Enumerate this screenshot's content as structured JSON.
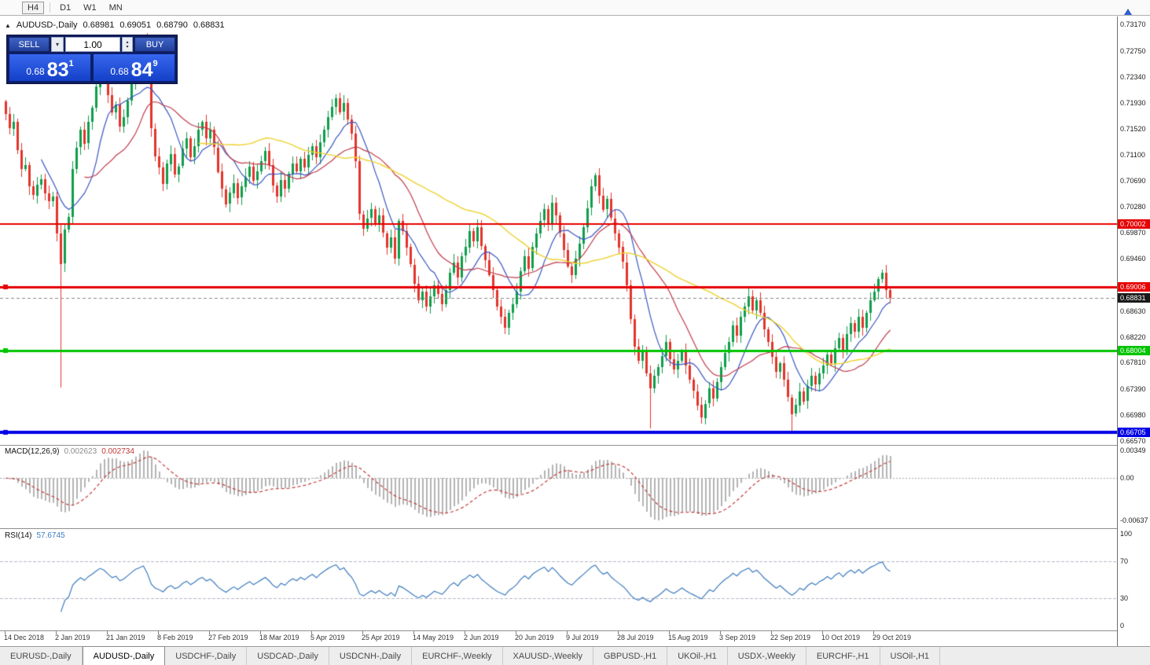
{
  "toolbar": {
    "timeframes": [
      {
        "label": "H4",
        "boxed": true
      },
      {
        "label": "D1",
        "boxed": false
      },
      {
        "label": "W1",
        "boxed": false
      },
      {
        "label": "MN",
        "boxed": false
      }
    ]
  },
  "chart_header": {
    "symbol": "AUDUSD-,Daily",
    "open": "0.68981",
    "high": "0.69051",
    "low": "0.68790",
    "close": "0.68831"
  },
  "trade_panel": {
    "sell_label": "SELL",
    "buy_label": "BUY",
    "volume": "1.00",
    "sell_price": {
      "small": "0.68",
      "big": "83",
      "sup": "1"
    },
    "buy_price": {
      "small": "0.68",
      "big": "84",
      "sup": "9"
    }
  },
  "price_axis_ticks": [
    "0.73170",
    "0.72750",
    "0.72340",
    "0.71930",
    "0.71520",
    "0.71100",
    "0.70690",
    "0.70280",
    "0.69870",
    "0.69460",
    "0.69040",
    "0.68630",
    "0.68220",
    "0.67810",
    "0.67390",
    "0.66980",
    "0.66570"
  ],
  "price_tags": [
    {
      "text": "0.70002",
      "color": "#E60000"
    },
    {
      "text": "0.69006",
      "color": "#E60000"
    },
    {
      "text": "0.68831",
      "color": "#1A1A1A"
    },
    {
      "text": "0.68004",
      "color": "#00C400"
    },
    {
      "text": "0.66705",
      "color": "#0000E6"
    }
  ],
  "macd_panel": {
    "title": "MACD(12,26,9)",
    "value_main": "0.002623",
    "value_signal": "0.002734",
    "axis_top": "0.00349",
    "axis_zero": "0.00",
    "axis_bottom": "-0.00637",
    "fast": 12,
    "slow": 26,
    "signal": 9,
    "histogram_color": "#B4B4B4",
    "signal_color": "#C23B3B"
  },
  "rsi_panel": {
    "title": "RSI(14)",
    "value": "57.6745",
    "period": 14,
    "axis": [
      "100",
      "70",
      "30",
      "0"
    ],
    "levels": [
      70,
      30
    ],
    "line_color": "#3C7BBF"
  },
  "time_axis": {
    "step": 13,
    "labels": [
      "14 Dec 2018",
      "2 Jan 2019",
      "21 Jan 2019",
      "8 Feb 2019",
      "27 Feb 2019",
      "18 Mar 2019",
      "5 Apr 2019",
      "25 Apr 2019",
      "14 May 2019",
      "2 Jun 2019",
      "20 Jun 2019",
      "9 Jul 2019",
      "28 Jul 2019",
      "15 Aug 2019",
      "3 Sep 2019",
      "22 Sep 2019",
      "10 Oct 2019",
      "29 Oct 2019"
    ]
  },
  "tabs": [
    {
      "label": "EURUSD-,Daily",
      "active": false
    },
    {
      "label": "AUDUSD-,Daily",
      "active": true
    },
    {
      "label": "USDCHF-,Daily",
      "active": false
    },
    {
      "label": "USDCAD-,Daily",
      "active": false
    },
    {
      "label": "USDCNH-,Daily",
      "active": false
    },
    {
      "label": "EURCHF-,Weekly",
      "active": false
    },
    {
      "label": "XAUUSD-,Weekly",
      "active": false
    },
    {
      "label": "GBPUSD-,H1",
      "active": false
    },
    {
      "label": "UKOil-,H1",
      "active": false
    },
    {
      "label": "USDX-,Weekly",
      "active": false
    },
    {
      "label": "EURCHF-,H1",
      "active": false
    },
    {
      "label": "USOil-,H1",
      "active": false
    }
  ],
  "chart_data": {
    "type": "candlestick",
    "symbol": "AUDUSD-",
    "timeframe": "Daily",
    "y_axis_range": {
      "top": 0.73282,
      "bottom": 0.66508
    },
    "current_price": 0.68831,
    "h_lines": [
      {
        "price": 0.70002,
        "color": "#E60000",
        "width": 2,
        "handle": false
      },
      {
        "price": 0.69006,
        "color": "#E60000",
        "width": 3,
        "handle": true
      },
      {
        "price": 0.68004,
        "color": "#00C400",
        "width": 3,
        "handle": true
      },
      {
        "price": 0.66705,
        "color": "#0000E6",
        "width": 4,
        "handle": true
      }
    ],
    "moving_averages": [
      {
        "period": 10,
        "color": "#3A57C4",
        "width": 1.2
      },
      {
        "period": 21,
        "color": "#C13B4A",
        "width": 1.2
      },
      {
        "period": 50,
        "color": "#EED22F",
        "width": 1.4
      }
    ],
    "colors": {
      "bull": "#0E9E4A",
      "bear": "#E3342B"
    },
    "first_open": 0.7195,
    "wick_overrides": {
      "14": {
        "low": 0.6741
      },
      "35": {
        "high": 0.7295
      },
      "84": {
        "high": 0.7206
      },
      "150": {
        "high": 0.7082
      },
      "164": {
        "low": 0.6677
      },
      "200": {
        "low": 0.66705
      },
      "223": {
        "high": 0.6929
      }
    },
    "closes": [
      0.7175,
      0.7152,
      0.7163,
      0.7118,
      0.7088,
      0.7094,
      0.706,
      0.7046,
      0.7063,
      0.7072,
      0.7049,
      0.7036,
      0.7044,
      0.6986,
      0.6938,
      0.6992,
      0.7012,
      0.7088,
      0.7122,
      0.715,
      0.7128,
      0.7162,
      0.7185,
      0.7218,
      0.7245,
      0.7232,
      0.7205,
      0.7178,
      0.719,
      0.7155,
      0.717,
      0.7196,
      0.7226,
      0.7255,
      0.7272,
      0.729,
      0.7242,
      0.7152,
      0.7108,
      0.709,
      0.7064,
      0.7096,
      0.7112,
      0.708,
      0.7092,
      0.712,
      0.7136,
      0.7106,
      0.7124,
      0.715,
      0.7162,
      0.7136,
      0.715,
      0.7122,
      0.7084,
      0.7056,
      0.7032,
      0.705,
      0.7066,
      0.7042,
      0.706,
      0.7076,
      0.7092,
      0.707,
      0.7084,
      0.71,
      0.7116,
      0.7094,
      0.7062,
      0.7044,
      0.707,
      0.7056,
      0.708,
      0.7096,
      0.7084,
      0.7104,
      0.709,
      0.711,
      0.7124,
      0.7106,
      0.713,
      0.715,
      0.717,
      0.7186,
      0.72,
      0.7178,
      0.7192,
      0.7166,
      0.7144,
      0.71,
      0.7016,
      0.6994,
      0.701,
      0.7024,
      0.7,
      0.7014,
      0.6986,
      0.6964,
      0.698,
      0.6946,
      0.7006,
      0.699,
      0.6964,
      0.6936,
      0.6906,
      0.688,
      0.6894,
      0.687,
      0.6886,
      0.6904,
      0.689,
      0.6874,
      0.6896,
      0.6924,
      0.694,
      0.6916,
      0.695,
      0.6964,
      0.699,
      0.6974,
      0.6996,
      0.6966,
      0.6944,
      0.692,
      0.6896,
      0.687,
      0.6854,
      0.6836,
      0.686,
      0.6874,
      0.6894,
      0.6926,
      0.695,
      0.693,
      0.6964,
      0.6986,
      0.7006,
      0.7024,
      0.7,
      0.7034,
      0.7014,
      0.6986,
      0.696,
      0.6934,
      0.692,
      0.6946,
      0.697,
      0.6996,
      0.7026,
      0.706,
      0.7078,
      0.7046,
      0.7024,
      0.704,
      0.701,
      0.6986,
      0.6964,
      0.694,
      0.6904,
      0.685,
      0.6806,
      0.6784,
      0.68,
      0.6764,
      0.674,
      0.676,
      0.6774,
      0.6792,
      0.6814,
      0.6786,
      0.677,
      0.6784,
      0.68,
      0.6776,
      0.6754,
      0.6736,
      0.6714,
      0.6694,
      0.6716,
      0.674,
      0.6724,
      0.675,
      0.6774,
      0.6796,
      0.6814,
      0.684,
      0.6824,
      0.6854,
      0.687,
      0.6886,
      0.6864,
      0.688,
      0.686,
      0.6834,
      0.6814,
      0.679,
      0.6766,
      0.678,
      0.6754,
      0.6726,
      0.67,
      0.6714,
      0.6736,
      0.672,
      0.6744,
      0.676,
      0.6746,
      0.6764,
      0.6776,
      0.6794,
      0.678,
      0.6804,
      0.682,
      0.68,
      0.6826,
      0.6844,
      0.683,
      0.6854,
      0.6836,
      0.686,
      0.688,
      0.6894,
      0.6914,
      0.6924,
      0.6896,
      0.6883
    ]
  }
}
